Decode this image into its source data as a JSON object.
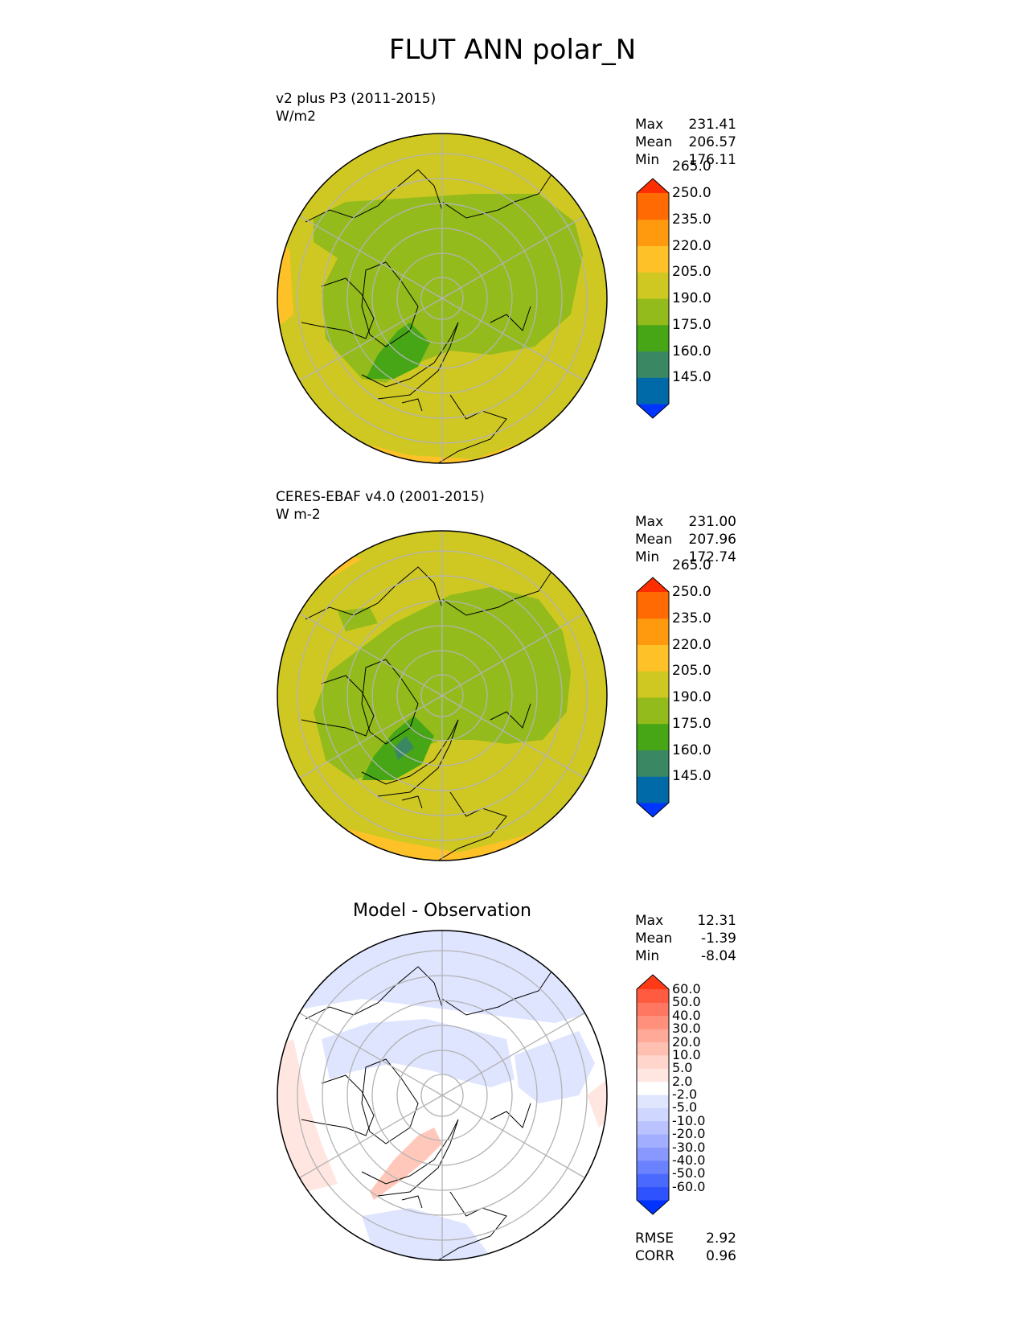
{
  "title": "FLUT ANN polar_N",
  "panels": [
    {
      "label_line1": "v2 plus P3 (2011-2015)",
      "label_line2": "W/m2",
      "stats": [
        {
          "name": "Max",
          "value": "231.41"
        },
        {
          "name": "Mean",
          "value": "206.57"
        },
        {
          "name": "Min",
          "value": "176.11"
        }
      ],
      "colorbar": {
        "colors": [
          "#0035ff",
          "#0069a8",
          "#3a8764",
          "#46a616",
          "#93bb1b",
          "#cfc823",
          "#ffc128",
          "#ff9a0f",
          "#ff6a02",
          "#ff2e00"
        ],
        "labels": [
          "145.0",
          "160.0",
          "175.0",
          "190.0",
          "205.0",
          "220.0",
          "235.0",
          "250.0",
          "265.0"
        ]
      }
    },
    {
      "label_line1": "CERES-EBAF v4.0 (2001-2015)",
      "label_line2": "W m-2",
      "stats": [
        {
          "name": "Max",
          "value": "231.00"
        },
        {
          "name": "Mean",
          "value": "207.96"
        },
        {
          "name": "Min",
          "value": "172.74"
        }
      ],
      "colorbar": {
        "colors": [
          "#0035ff",
          "#0069a8",
          "#3a8764",
          "#46a616",
          "#93bb1b",
          "#cfc823",
          "#ffc128",
          "#ff9a0f",
          "#ff6a02",
          "#ff2e00"
        ],
        "labels": [
          "145.0",
          "160.0",
          "175.0",
          "190.0",
          "205.0",
          "220.0",
          "235.0",
          "250.0",
          "265.0"
        ]
      }
    },
    {
      "title": "Model - Observation",
      "stats": [
        {
          "name": "Max",
          "value": "12.31"
        },
        {
          "name": "Mean",
          "value": "-1.39"
        },
        {
          "name": "Min",
          "value": "-8.04"
        }
      ],
      "metrics": [
        {
          "name": "RMSE",
          "value": "2.92"
        },
        {
          "name": "CORR",
          "value": "0.96"
        }
      ],
      "colorbar": {
        "colors": [
          "#0033ff",
          "#2f52ff",
          "#4a69ff",
          "#6b82ff",
          "#8898ff",
          "#a2aeff",
          "#bac2ff",
          "#cfd6ff",
          "#e1e6ff",
          "#ffffff",
          "#ffe6e1",
          "#ffd5cc",
          "#ffc0b2",
          "#ffa998",
          "#ff907c",
          "#ff7760",
          "#ff5b41",
          "#ff3a17"
        ],
        "labels": [
          "-60.0",
          "-50.0",
          "-40.0",
          "-30.0",
          "-20.0",
          "-10.0",
          "-5.0",
          "-2.0",
          "2.0",
          "5.0",
          "10.0",
          "20.0",
          "30.0",
          "40.0",
          "50.0",
          "60.0"
        ]
      }
    }
  ]
}
